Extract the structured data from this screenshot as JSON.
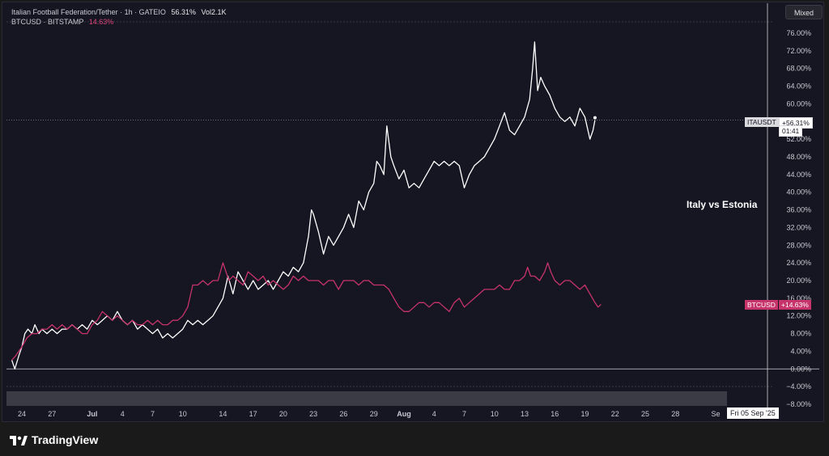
{
  "legend": {
    "line1_name": "Italian Football Federation/Tether · 1h · GATEIO",
    "line1_value": "56.31%",
    "line1_vol": "Vol2.1K",
    "line2_name": "BTCUSD · BITSTAMP",
    "line2_value": "14.63%"
  },
  "mixed_button": "Mixed",
  "annotation": "Italy vs Estonia",
  "badges": {
    "ita_name": "ITAUSDT",
    "ita_value": "+56.31%",
    "ita_time": "01:41",
    "btc_name": "BTCUSD",
    "btc_value": "+14.63%"
  },
  "crosshair_date": "Fri 05 Sep '25",
  "brand": "TradingView",
  "colors": {
    "background": "#151622",
    "ita_line": "#ffffff",
    "btc_line": "#c7336b",
    "grid_zero": "#cfcfd4",
    "axis_text": "#c8c8d0"
  },
  "chart_data": {
    "type": "line",
    "y_unit": "%",
    "ylim": [
      -8,
      78
    ],
    "y_ticks": [
      "76.00%",
      "72.00%",
      "68.00%",
      "64.00%",
      "60.00%",
      "56.00%",
      "52.00%",
      "48.00%",
      "44.00%",
      "40.00%",
      "36.00%",
      "32.00%",
      "28.00%",
      "24.00%",
      "20.00%",
      "16.00%",
      "12.00%",
      "8.00%",
      "4.00%",
      "0.00%",
      "−4.00%",
      "−8.00%"
    ],
    "y_tick_values": [
      76,
      72,
      68,
      64,
      60,
      56,
      52,
      48,
      44,
      40,
      36,
      32,
      28,
      24,
      20,
      16,
      12,
      8,
      4,
      0,
      -4,
      -8
    ],
    "x_ticks": [
      {
        "label": "24",
        "day": 0
      },
      {
        "label": "27",
        "day": 3
      },
      {
        "label": "Jul",
        "day": 7,
        "bold": true
      },
      {
        "label": "4",
        "day": 10
      },
      {
        "label": "7",
        "day": 13
      },
      {
        "label": "10",
        "day": 16
      },
      {
        "label": "14",
        "day": 20
      },
      {
        "label": "17",
        "day": 23
      },
      {
        "label": "20",
        "day": 26
      },
      {
        "label": "23",
        "day": 29
      },
      {
        "label": "26",
        "day": 32
      },
      {
        "label": "29",
        "day": 35
      },
      {
        "label": "Aug",
        "day": 38,
        "bold": true
      },
      {
        "label": "4",
        "day": 41
      },
      {
        "label": "7",
        "day": 44
      },
      {
        "label": "10",
        "day": 47
      },
      {
        "label": "13",
        "day": 50
      },
      {
        "label": "16",
        "day": 53
      },
      {
        "label": "19",
        "day": 56
      },
      {
        "label": "22",
        "day": 59
      },
      {
        "label": "25",
        "day": 62
      },
      {
        "label": "28",
        "day": 65
      },
      {
        "label": "Se",
        "day": 69
      }
    ],
    "series": [
      {
        "name": "Italian Football Federation/Tether",
        "color": "#ffffff",
        "points": [
          [
            -1,
            2
          ],
          [
            -0.7,
            0
          ],
          [
            -0.3,
            3
          ],
          [
            0,
            5
          ],
          [
            0.3,
            8
          ],
          [
            0.6,
            9
          ],
          [
            1,
            8
          ],
          [
            1.3,
            10
          ],
          [
            1.7,
            8
          ],
          [
            2,
            9
          ],
          [
            2.5,
            8
          ],
          [
            3,
            9
          ],
          [
            3.5,
            8
          ],
          [
            4,
            9
          ],
          [
            4.5,
            9
          ],
          [
            5,
            10
          ],
          [
            5.5,
            9
          ],
          [
            6,
            10
          ],
          [
            6.5,
            9
          ],
          [
            7,
            11
          ],
          [
            7.5,
            10
          ],
          [
            8,
            11
          ],
          [
            8.5,
            12
          ],
          [
            9,
            11
          ],
          [
            9.5,
            13
          ],
          [
            10,
            11
          ],
          [
            10.5,
            10
          ],
          [
            11,
            11
          ],
          [
            11.5,
            9
          ],
          [
            12,
            10
          ],
          [
            12.5,
            9
          ],
          [
            13,
            8
          ],
          [
            13.5,
            9
          ],
          [
            14,
            7
          ],
          [
            14.5,
            8
          ],
          [
            15,
            7
          ],
          [
            15.5,
            8
          ],
          [
            16,
            9
          ],
          [
            16.5,
            11
          ],
          [
            17,
            10
          ],
          [
            17.5,
            11
          ],
          [
            18,
            10
          ],
          [
            18.5,
            11
          ],
          [
            19,
            12
          ],
          [
            19.5,
            14
          ],
          [
            20,
            16
          ],
          [
            20.5,
            21
          ],
          [
            21,
            17
          ],
          [
            21.5,
            22
          ],
          [
            22,
            20
          ],
          [
            22.5,
            18
          ],
          [
            23,
            20
          ],
          [
            23.5,
            18
          ],
          [
            24,
            19
          ],
          [
            24.5,
            20
          ],
          [
            25,
            18
          ],
          [
            25.5,
            20
          ],
          [
            26,
            22
          ],
          [
            26.5,
            21
          ],
          [
            27,
            23
          ],
          [
            27.5,
            22
          ],
          [
            28,
            24
          ],
          [
            28.5,
            30
          ],
          [
            28.8,
            36
          ],
          [
            29,
            35
          ],
          [
            29.5,
            31
          ],
          [
            30,
            26
          ],
          [
            30.5,
            30
          ],
          [
            31,
            28
          ],
          [
            31.5,
            30
          ],
          [
            32,
            32
          ],
          [
            32.5,
            35
          ],
          [
            33,
            32
          ],
          [
            33.5,
            38
          ],
          [
            34,
            36
          ],
          [
            34.5,
            40
          ],
          [
            35,
            42
          ],
          [
            35.3,
            47
          ],
          [
            35.6,
            46
          ],
          [
            36,
            44
          ],
          [
            36.3,
            55
          ],
          [
            36.7,
            48
          ],
          [
            37,
            46
          ],
          [
            37.5,
            43
          ],
          [
            38,
            45
          ],
          [
            38.5,
            41
          ],
          [
            39,
            42
          ],
          [
            39.5,
            41
          ],
          [
            40,
            43
          ],
          [
            40.5,
            45
          ],
          [
            41,
            47
          ],
          [
            41.5,
            46
          ],
          [
            42,
            47
          ],
          [
            42.5,
            46
          ],
          [
            43,
            47
          ],
          [
            43.5,
            46
          ],
          [
            44,
            41
          ],
          [
            44.5,
            44
          ],
          [
            45,
            46
          ],
          [
            45.5,
            47
          ],
          [
            46,
            48
          ],
          [
            46.5,
            50
          ],
          [
            47,
            52
          ],
          [
            47.5,
            55
          ],
          [
            48,
            58
          ],
          [
            48.5,
            54
          ],
          [
            49,
            53
          ],
          [
            49.5,
            55
          ],
          [
            50,
            57
          ],
          [
            50.5,
            61
          ],
          [
            50.8,
            68
          ],
          [
            51,
            74
          ],
          [
            51.3,
            63
          ],
          [
            51.6,
            66
          ],
          [
            52,
            64
          ],
          [
            52.5,
            62
          ],
          [
            53,
            59
          ],
          [
            53.5,
            57
          ],
          [
            54,
            56
          ],
          [
            54.5,
            57
          ],
          [
            55,
            55
          ],
          [
            55.5,
            59
          ],
          [
            56,
            57
          ],
          [
            56.5,
            52
          ],
          [
            56.8,
            54
          ],
          [
            57,
            56.3
          ]
        ]
      },
      {
        "name": "BTCUSD · BITSTAMP",
        "color": "#c7336b",
        "points": [
          [
            -1,
            2
          ],
          [
            -0.6,
            3
          ],
          [
            0,
            5
          ],
          [
            0.5,
            7
          ],
          [
            1,
            8
          ],
          [
            1.5,
            8
          ],
          [
            2,
            9
          ],
          [
            2.5,
            9
          ],
          [
            3,
            10
          ],
          [
            3.5,
            9
          ],
          [
            4,
            10
          ],
          [
            4.5,
            9
          ],
          [
            5,
            10
          ],
          [
            5.5,
            9
          ],
          [
            6,
            8
          ],
          [
            6.5,
            8
          ],
          [
            7,
            10
          ],
          [
            7.5,
            11
          ],
          [
            8,
            13
          ],
          [
            8.5,
            12
          ],
          [
            9,
            11
          ],
          [
            9.5,
            12
          ],
          [
            10,
            11
          ],
          [
            10.5,
            10
          ],
          [
            11,
            11
          ],
          [
            11.5,
            10
          ],
          [
            12,
            10
          ],
          [
            12.5,
            11
          ],
          [
            13,
            10
          ],
          [
            13.5,
            11
          ],
          [
            14,
            10
          ],
          [
            14.5,
            10
          ],
          [
            15,
            11
          ],
          [
            15.5,
            11
          ],
          [
            16,
            12
          ],
          [
            16.5,
            14
          ],
          [
            17,
            19
          ],
          [
            17.5,
            19
          ],
          [
            18,
            20
          ],
          [
            18.5,
            19
          ],
          [
            19,
            20
          ],
          [
            19.5,
            20
          ],
          [
            20,
            24
          ],
          [
            20.3,
            22
          ],
          [
            20.6,
            20
          ],
          [
            21,
            21
          ],
          [
            21.5,
            20
          ],
          [
            22,
            19
          ],
          [
            22.5,
            22
          ],
          [
            23,
            21
          ],
          [
            23.5,
            20
          ],
          [
            24,
            21
          ],
          [
            24.5,
            19
          ],
          [
            25,
            20
          ],
          [
            25.5,
            19
          ],
          [
            26,
            18
          ],
          [
            26.5,
            19
          ],
          [
            27,
            21
          ],
          [
            27.5,
            20
          ],
          [
            28,
            21
          ],
          [
            28.5,
            20
          ],
          [
            29,
            20
          ],
          [
            29.5,
            20
          ],
          [
            30,
            19
          ],
          [
            30.5,
            20
          ],
          [
            31,
            20
          ],
          [
            31.5,
            18
          ],
          [
            32,
            20
          ],
          [
            32.5,
            20
          ],
          [
            33,
            20
          ],
          [
            33.5,
            19
          ],
          [
            34,
            20
          ],
          [
            34.5,
            20
          ],
          [
            35,
            19
          ],
          [
            35.5,
            19
          ],
          [
            36,
            19
          ],
          [
            36.5,
            18
          ],
          [
            37,
            16
          ],
          [
            37.5,
            14
          ],
          [
            38,
            13
          ],
          [
            38.5,
            13
          ],
          [
            39,
            14
          ],
          [
            39.5,
            15
          ],
          [
            40,
            15
          ],
          [
            40.5,
            14
          ],
          [
            41,
            15
          ],
          [
            41.5,
            15
          ],
          [
            42,
            14
          ],
          [
            42.5,
            13
          ],
          [
            43,
            15
          ],
          [
            43.5,
            16
          ],
          [
            44,
            14
          ],
          [
            44.5,
            15
          ],
          [
            45,
            16
          ],
          [
            45.5,
            17
          ],
          [
            46,
            18
          ],
          [
            46.5,
            18
          ],
          [
            47,
            18
          ],
          [
            47.5,
            19
          ],
          [
            48,
            18
          ],
          [
            48.5,
            18
          ],
          [
            49,
            20
          ],
          [
            49.5,
            20
          ],
          [
            50,
            21
          ],
          [
            50.3,
            23
          ],
          [
            50.6,
            21
          ],
          [
            51,
            21
          ],
          [
            51.5,
            20
          ],
          [
            52,
            22
          ],
          [
            52.3,
            24
          ],
          [
            52.6,
            22
          ],
          [
            53,
            20
          ],
          [
            53.5,
            19
          ],
          [
            54,
            20
          ],
          [
            54.5,
            20
          ],
          [
            55,
            19
          ],
          [
            55.5,
            18
          ],
          [
            56,
            19
          ],
          [
            56.5,
            17
          ],
          [
            57,
            15
          ],
          [
            57.3,
            14
          ],
          [
            57.6,
            14.6
          ]
        ]
      }
    ]
  }
}
